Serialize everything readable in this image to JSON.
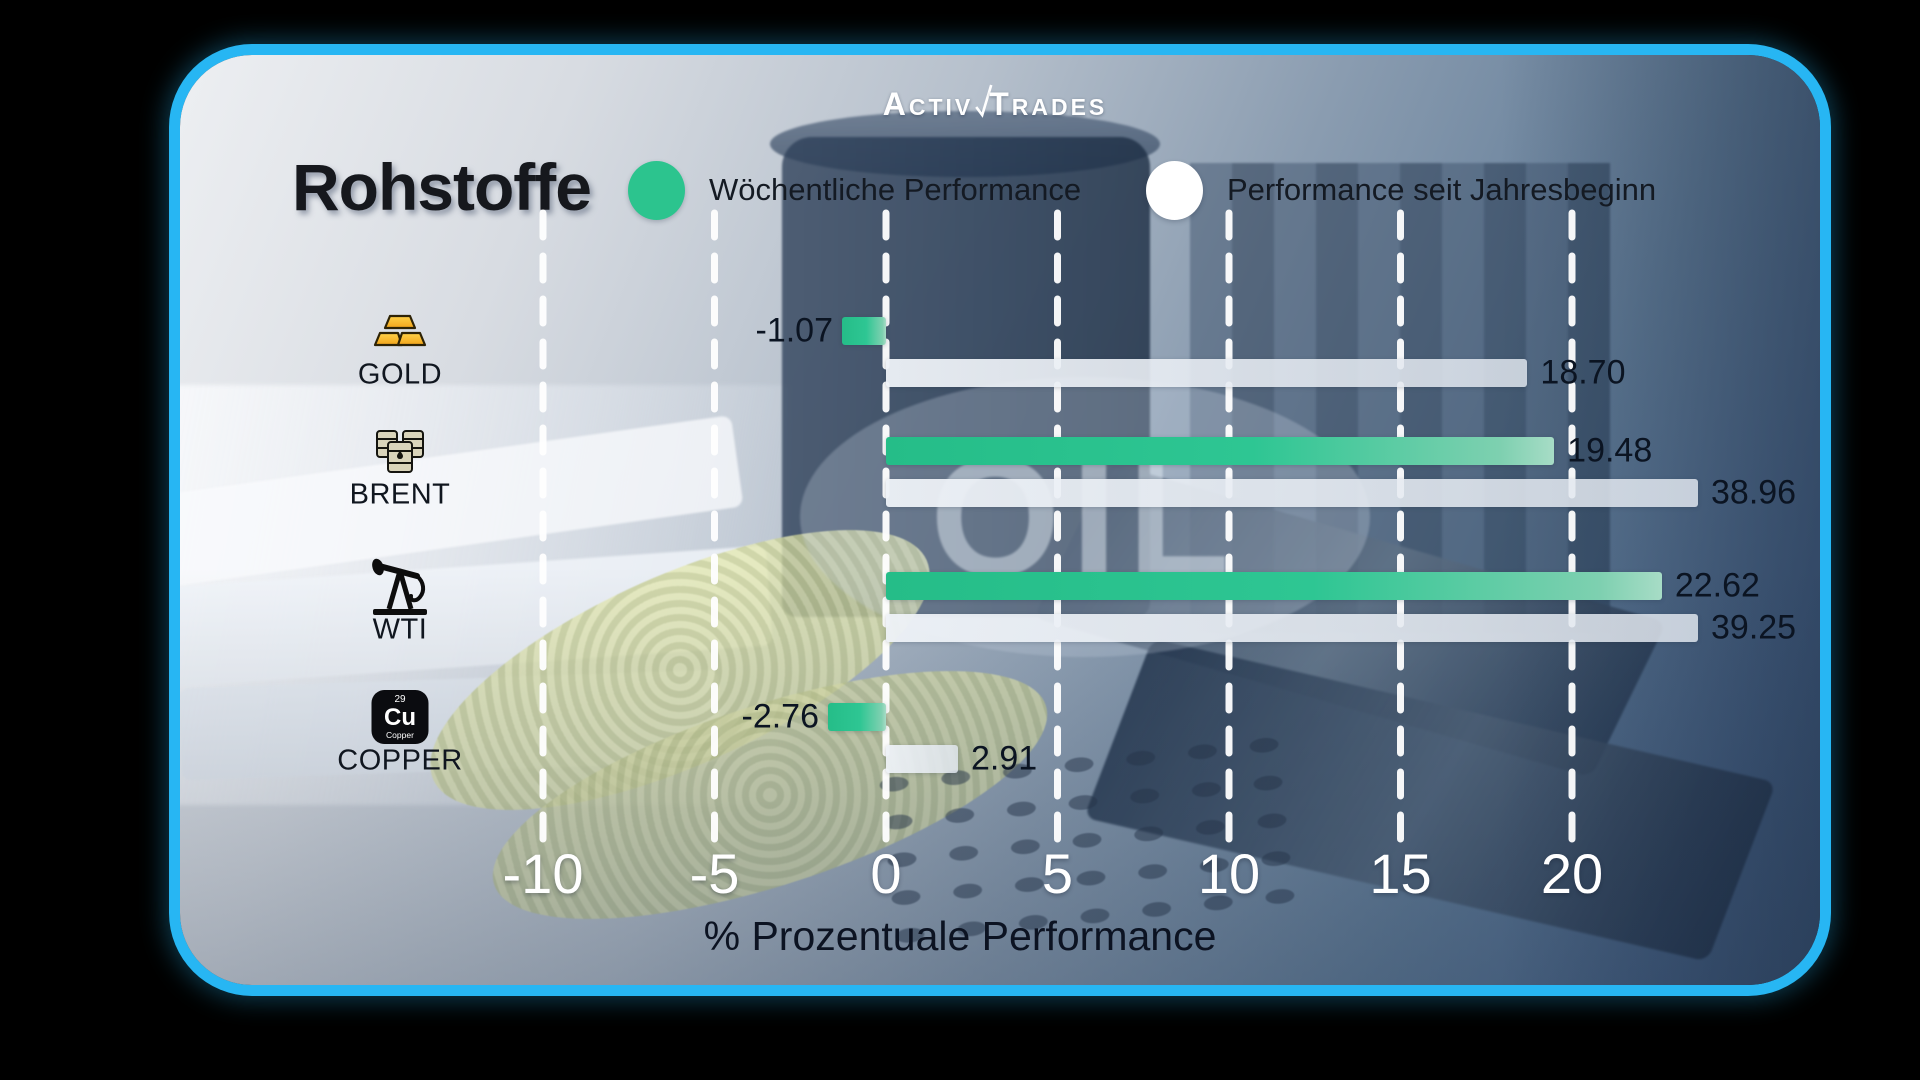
{
  "page_background": "#000000",
  "card": {
    "accent_border_color": "#27B6F3"
  },
  "brand": {
    "part1": "Activ",
    "part2": "Trades",
    "check_icon": "radical-check-icon"
  },
  "title": "Rohstoffe",
  "legend": {
    "weekly": {
      "label": "Wöchentliche Performance",
      "color": "#2CC48E"
    },
    "ytd": {
      "label": "Performance seit Jahresbeginn",
      "color": "#FFFFFF"
    }
  },
  "chart_data": {
    "type": "bar",
    "orientation": "horizontal",
    "title": "Rohstoffe",
    "xlabel": "% Prozentuale Performance",
    "x_ticks": [
      "-10",
      "-5",
      "0",
      "5",
      "10",
      "15",
      "20"
    ],
    "xlim": [
      -10,
      20
    ],
    "grid": "dashed-white-vertical",
    "legend_position": "top",
    "categories": [
      "GOLD",
      "BRENT",
      "WTI",
      "COPPER"
    ],
    "category_icons": [
      "gold-bars",
      "oil-barrels",
      "oil-pumpjack",
      "copper-element"
    ],
    "series": [
      {
        "name": "Wöchentliche Performance",
        "color": "#2CC48E",
        "values": [
          -1.07,
          19.48,
          22.62,
          -2.76
        ],
        "labels": [
          "-1.07",
          "19.48",
          "22.62",
          "-2.76"
        ]
      },
      {
        "name": "Performance seit Jahresbeginn",
        "color": "#E9EDF3",
        "values": [
          18.7,
          38.96,
          39.25,
          2.91
        ],
        "labels": [
          "18.70",
          "38.96",
          "39.25",
          "2.91"
        ]
      }
    ]
  },
  "copper_element": {
    "atomic_number": "29",
    "symbol": "Cu",
    "name": "Copper"
  },
  "background_watermark": "OIL"
}
